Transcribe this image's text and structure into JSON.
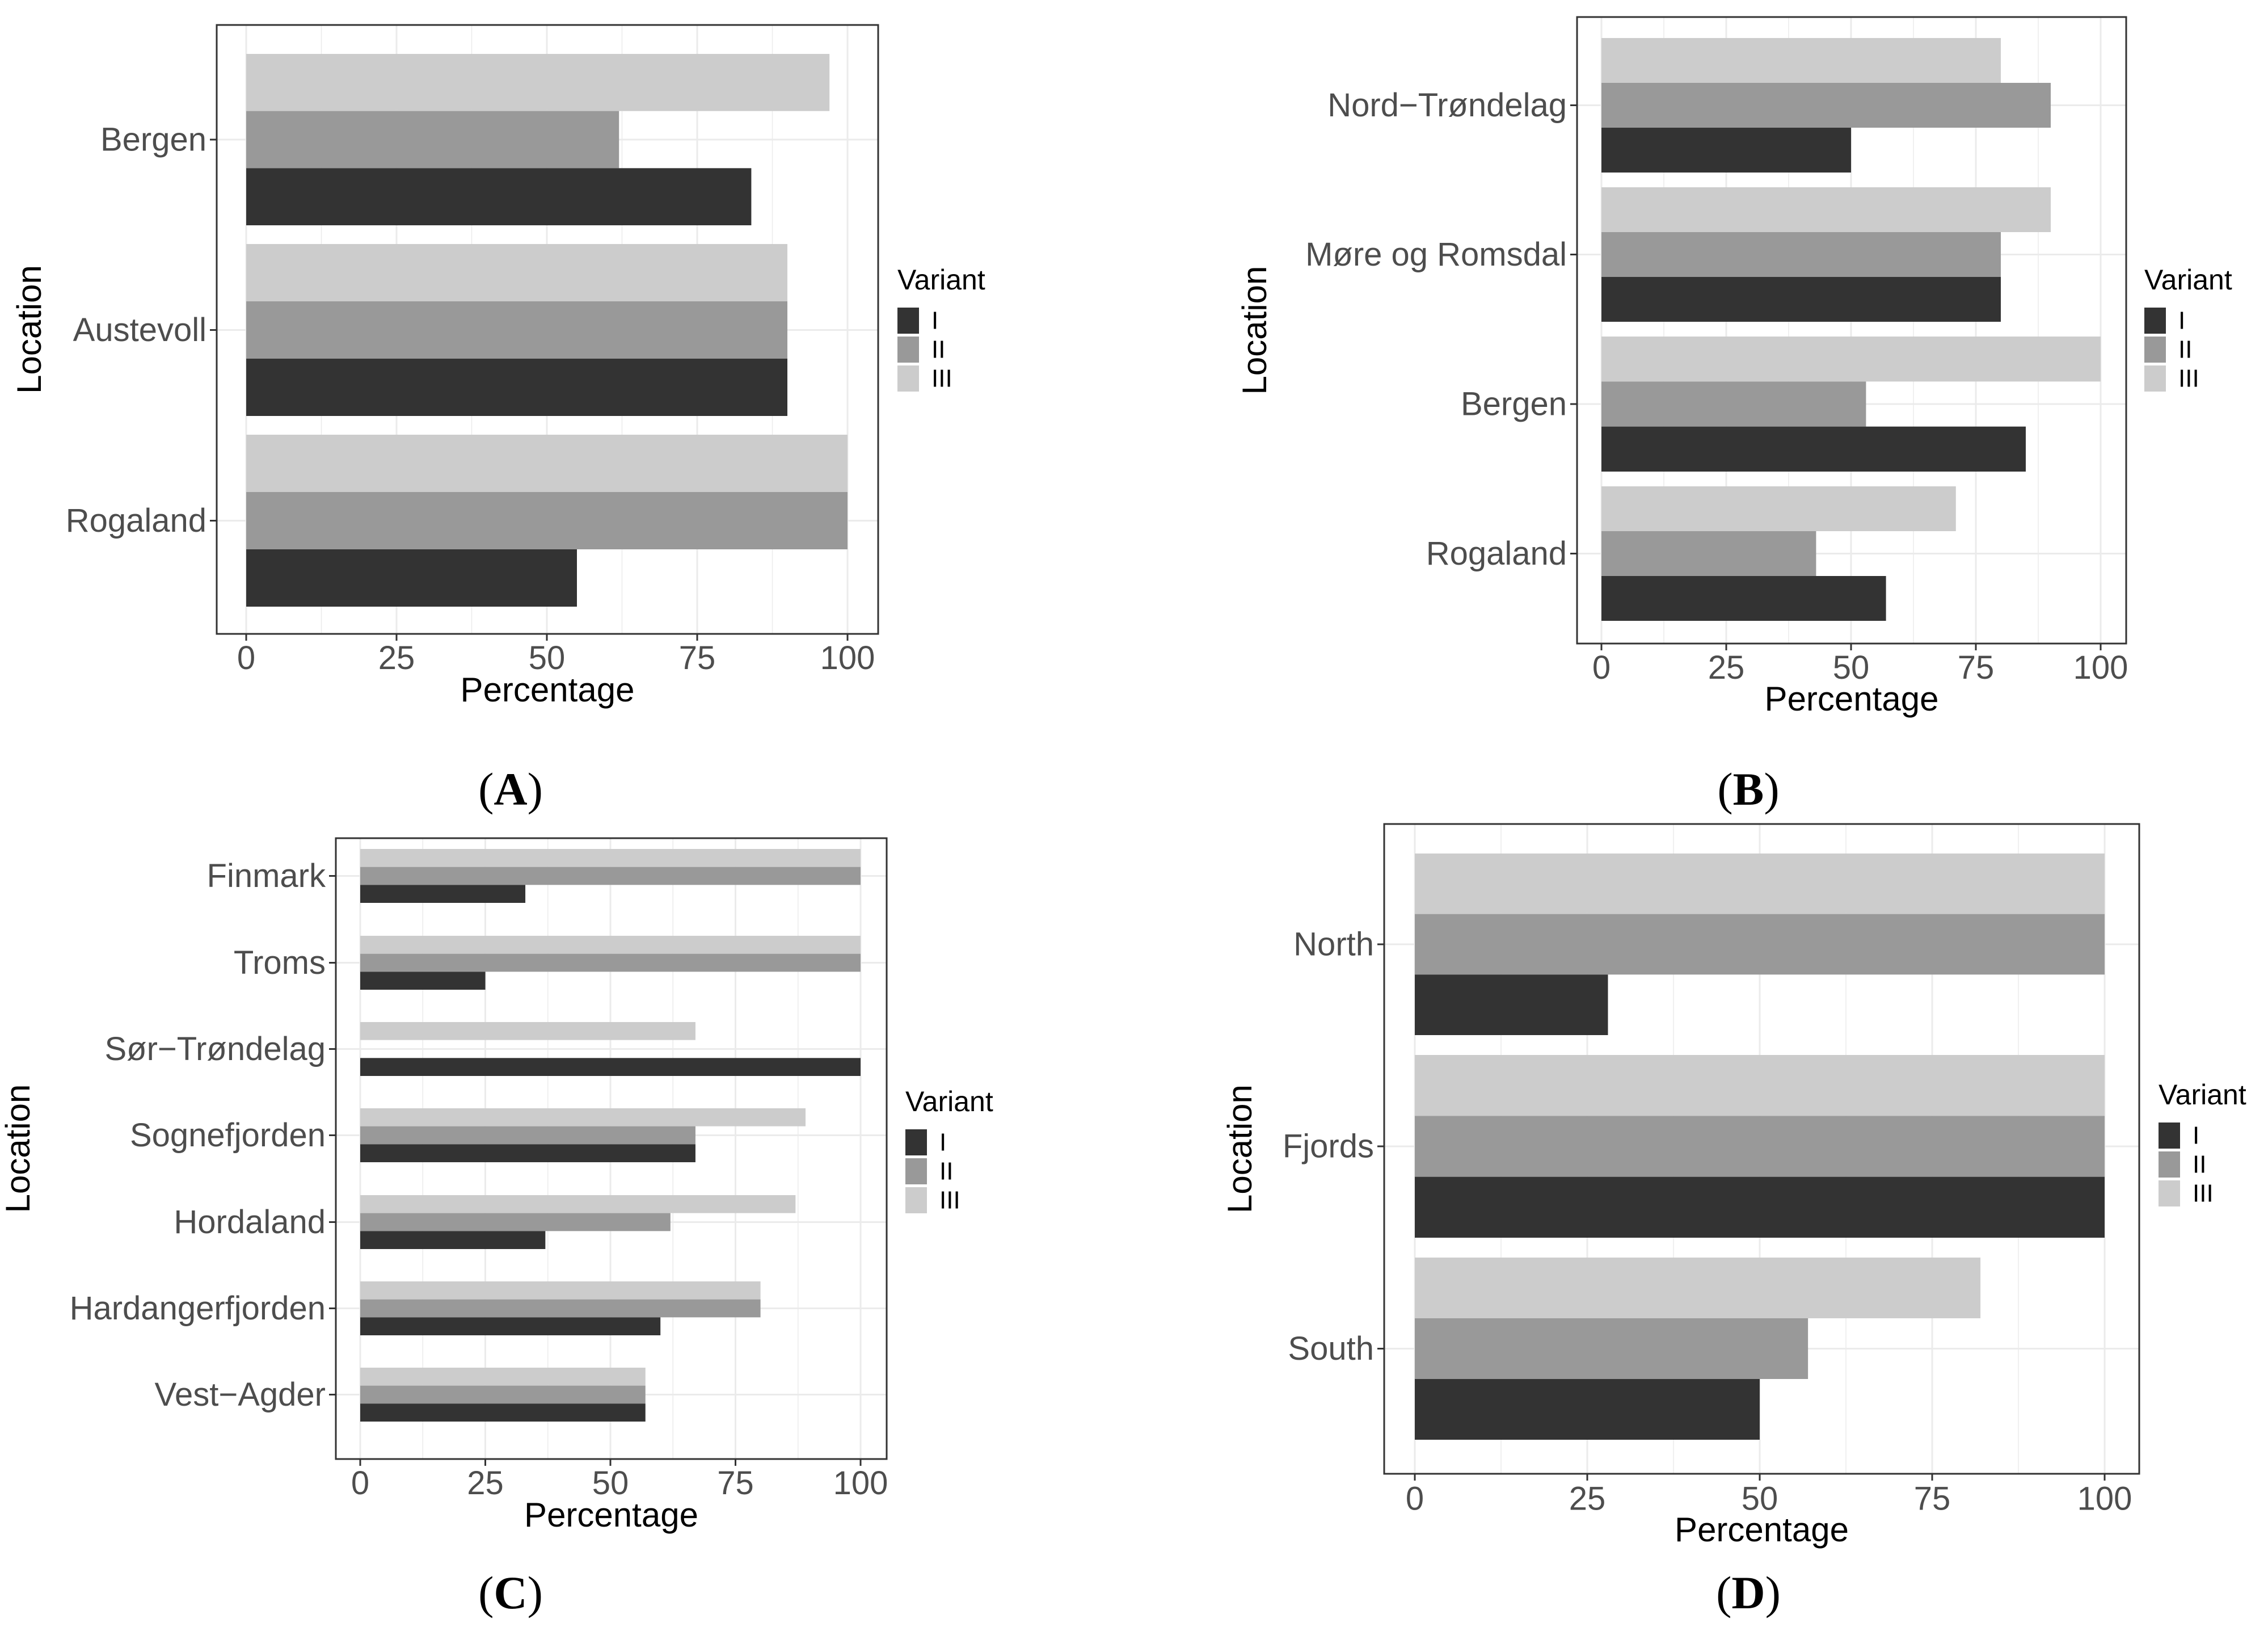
{
  "colors": {
    "I": "#333333",
    "II": "#999999",
    "III": "#cccccc",
    "panel_border": "#333333",
    "grid": "#ebebeb"
  },
  "chart_data": [
    {
      "type": "bar",
      "orientation": "horizontal",
      "panel": "A",
      "caption": {
        "open": "(",
        "letter": "A",
        "close": ")"
      },
      "xlabel": "Percentage",
      "ylabel": "Location",
      "xlim": [
        0,
        100
      ],
      "xticks": [
        0,
        25,
        50,
        75,
        100
      ],
      "grid": true,
      "legend": {
        "title": "Variant",
        "position": "right",
        "entries": [
          "I",
          "II",
          "III"
        ]
      },
      "categories": [
        "Bergen",
        "Austevoll",
        "Rogaland"
      ],
      "series": [
        {
          "name": "I",
          "values": [
            84,
            90,
            55
          ]
        },
        {
          "name": "II",
          "values": [
            62,
            90,
            100
          ]
        },
        {
          "name": "III",
          "values": [
            97,
            90,
            100
          ]
        }
      ]
    },
    {
      "type": "bar",
      "orientation": "horizontal",
      "panel": "B",
      "caption": {
        "open": "(",
        "letter": "B",
        "close": ")"
      },
      "xlabel": "Percentage",
      "ylabel": "Location",
      "xlim": [
        0,
        100
      ],
      "xticks": [
        0,
        25,
        50,
        75,
        100
      ],
      "grid": true,
      "legend": {
        "title": "Variant",
        "position": "right",
        "entries": [
          "I",
          "II",
          "III"
        ]
      },
      "categories": [
        "Nord−Trøndelag",
        "Møre og Romsdal",
        "Bergen",
        "Rogaland"
      ],
      "series": [
        {
          "name": "I",
          "values": [
            50,
            80,
            85,
            57
          ]
        },
        {
          "name": "II",
          "values": [
            90,
            80,
            53,
            43
          ]
        },
        {
          "name": "III",
          "values": [
            80,
            90,
            100,
            71
          ]
        }
      ]
    },
    {
      "type": "bar",
      "orientation": "horizontal",
      "panel": "C",
      "caption": {
        "open": "(",
        "letter": "C",
        "close": ")"
      },
      "xlabel": "Percentage",
      "ylabel": "Location",
      "xlim": [
        0,
        100
      ],
      "xticks": [
        0,
        25,
        50,
        75,
        100
      ],
      "grid": true,
      "legend": {
        "title": "Variant",
        "position": "right",
        "entries": [
          "I",
          "II",
          "III"
        ]
      },
      "categories": [
        "Finmark",
        "Troms",
        "Sør−Trøndelag",
        "Sognefjorden",
        "Hordaland",
        "Hardangerfjorden",
        "Vest−Agder"
      ],
      "series": [
        {
          "name": "I",
          "values": [
            33,
            25,
            100,
            67,
            37,
            60,
            57
          ]
        },
        {
          "name": "II",
          "values": [
            100,
            100,
            0,
            67,
            62,
            80,
            57
          ]
        },
        {
          "name": "III",
          "values": [
            100,
            100,
            67,
            89,
            87,
            80,
            57
          ]
        }
      ]
    },
    {
      "type": "bar",
      "orientation": "horizontal",
      "panel": "D",
      "caption": {
        "open": "(",
        "letter": "D",
        "close": ")"
      },
      "xlabel": "Percentage",
      "ylabel": "Location",
      "xlim": [
        0,
        100
      ],
      "xticks": [
        0,
        25,
        50,
        75,
        100
      ],
      "grid": true,
      "legend": {
        "title": "Variant",
        "position": "right",
        "entries": [
          "I",
          "II",
          "III"
        ]
      },
      "categories": [
        "North",
        "Fjords",
        "South"
      ],
      "series": [
        {
          "name": "I",
          "values": [
            28,
            100,
            50
          ]
        },
        {
          "name": "II",
          "values": [
            100,
            100,
            57
          ]
        },
        {
          "name": "III",
          "values": [
            100,
            100,
            82
          ]
        }
      ]
    }
  ]
}
